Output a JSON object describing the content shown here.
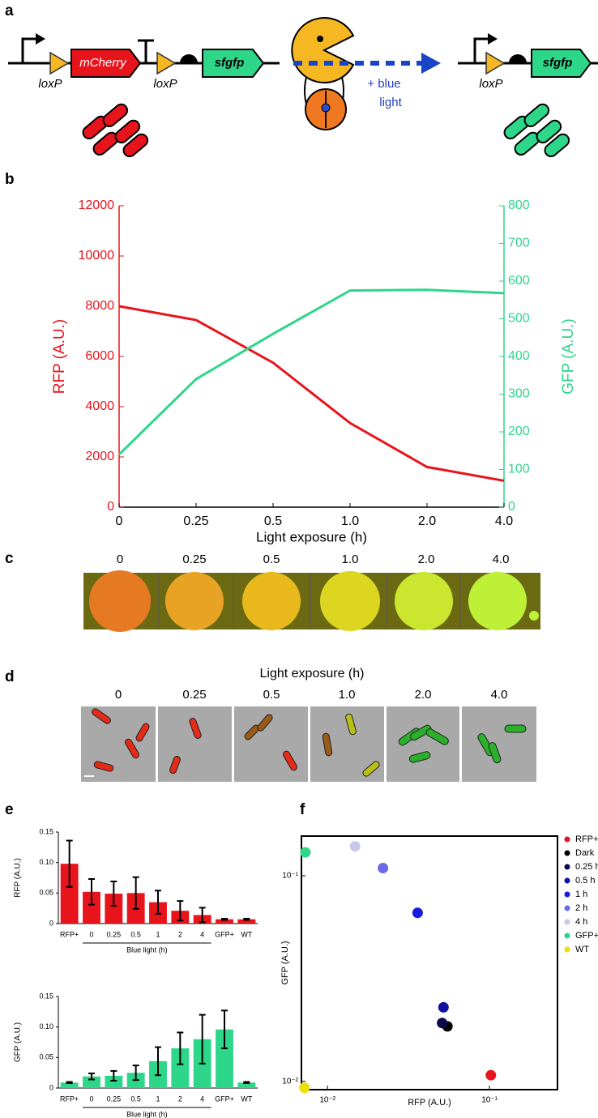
{
  "panel_labels": [
    "a",
    "b",
    "c",
    "d",
    "e",
    "f"
  ],
  "diagram": {
    "left_parts": [
      "mCherry",
      "sfgfp"
    ],
    "left_sites": [
      "loxP",
      "loxP"
    ],
    "arrow_label": [
      "+ blue",
      "light"
    ],
    "right_parts": [
      "sfgfp"
    ],
    "right_sites": [
      "loxP"
    ]
  },
  "colony_image": {
    "labels": [
      "0",
      "0.25",
      "0.5",
      "1.0",
      "2.0",
      "4.0"
    ]
  },
  "micrographs": {
    "title": "Light exposure (h)",
    "labels": [
      "0",
      "0.25",
      "0.5",
      "1.0",
      "2.0",
      "4.0"
    ]
  },
  "chart_data": [
    {
      "type": "line",
      "xlabel": "Light exposure (h)",
      "ylabel": "RFP (A.U.)",
      "y2label": "GFP (A.U.)",
      "categories": [
        "0",
        "0.25",
        "0.5",
        "1.0",
        "2.0",
        "4.0"
      ],
      "series": [
        {
          "color": "#e8141c",
          "values": [
            8000,
            7450,
            5750,
            3350,
            1600,
            1050
          ]
        },
        {
          "color": "#2ed68a",
          "axis": "y2",
          "values": [
            140,
            340,
            460,
            575,
            577,
            568
          ]
        }
      ],
      "ylim": [
        0,
        12000
      ],
      "yticks": [
        0,
        2000,
        4000,
        6000,
        8000,
        10000,
        12000
      ],
      "y2lim": [
        0,
        800
      ],
      "y2ticks": [
        0,
        100,
        200,
        300,
        400,
        500,
        600,
        700,
        800
      ]
    },
    {
      "type": "bar",
      "ylabel": "RFP (A.U.)",
      "group_label": "Blue light (h)",
      "color": "#e8141c",
      "categories": [
        "RFP+",
        "0",
        "0.25",
        "0.5",
        "1",
        "2",
        "4",
        "GFP+",
        "WT"
      ],
      "values": [
        0.098,
        0.052,
        0.049,
        0.05,
        0.035,
        0.021,
        0.014,
        0.007,
        0.007
      ],
      "errors": [
        0.038,
        0.021,
        0.02,
        0.026,
        0.019,
        0.016,
        0.012,
        0.001,
        0.001
      ],
      "ylim": [
        0,
        0.15
      ],
      "yticks": [
        0,
        0.05,
        {
          "value": 0.1,
          "label": "0.10"
        },
        0.15
      ]
    },
    {
      "type": "bar",
      "ylabel": "GFP (A.U.)",
      "group_label": "Blue light (h)",
      "color": "#2ed68a",
      "categories": [
        "RFP+",
        "0",
        "0.25",
        "0.5",
        "1",
        "2",
        "4",
        "GFP+",
        "WT"
      ],
      "values": [
        0.009,
        0.019,
        0.02,
        0.025,
        0.044,
        0.065,
        0.08,
        0.096,
        0.009
      ],
      "errors": [
        0.001,
        0.005,
        0.008,
        0.012,
        0.023,
        0.026,
        0.04,
        0.031,
        0.001
      ],
      "ylim": [
        0,
        0.15
      ],
      "yticks": [
        0,
        0.05,
        {
          "value": 0.1,
          "label": "0.10"
        },
        0.15
      ]
    },
    {
      "type": "scatter",
      "xlabel": "RFP (A.U.)",
      "ylabel": "GFP (A.U.)",
      "xscale": "log",
      "yscale": "log",
      "xlim": [
        0.0069,
        0.263
      ],
      "ylim": [
        0.0091,
        0.156
      ],
      "xticks": [
        {
          "value": 0.01,
          "label": "10⁻²"
        },
        {
          "value": 0.1,
          "label": "10⁻¹"
        }
      ],
      "yticks": [
        {
          "value": 0.01,
          "label": "10⁻²"
        },
        {
          "value": 0.1,
          "label": "10⁻¹"
        }
      ],
      "series": [
        {
          "name": "RFP+",
          "color": "#e8141c",
          "x": [
            0.102
          ],
          "values": [
            0.0107
          ]
        },
        {
          "name": "Dark",
          "color": "#000000",
          "x": [
            0.055
          ],
          "values": [
            0.0185
          ]
        },
        {
          "name": "0.25 h",
          "color": "#0a0a4a",
          "x": [
            0.051
          ],
          "values": [
            0.0192
          ]
        },
        {
          "name": "0.5 h",
          "color": "#1010a0",
          "x": [
            0.052
          ],
          "values": [
            0.0229
          ]
        },
        {
          "name": "1 h",
          "color": "#1a1ae0",
          "x": [
            0.036
          ],
          "values": [
            0.066
          ]
        },
        {
          "name": "2 h",
          "color": "#6a6ae8",
          "x": [
            0.022
          ],
          "values": [
            0.109
          ]
        },
        {
          "name": "4 h",
          "color": "#c8c8ec",
          "x": [
            0.0148
          ],
          "values": [
            0.139
          ]
        },
        {
          "name": "GFP+",
          "color": "#2ed68a",
          "x": [
            0.0073
          ],
          "values": [
            0.13
          ]
        },
        {
          "name": "WT",
          "color": "#f0e000",
          "x": [
            0.0072
          ],
          "values": [
            0.0093
          ]
        }
      ]
    }
  ]
}
